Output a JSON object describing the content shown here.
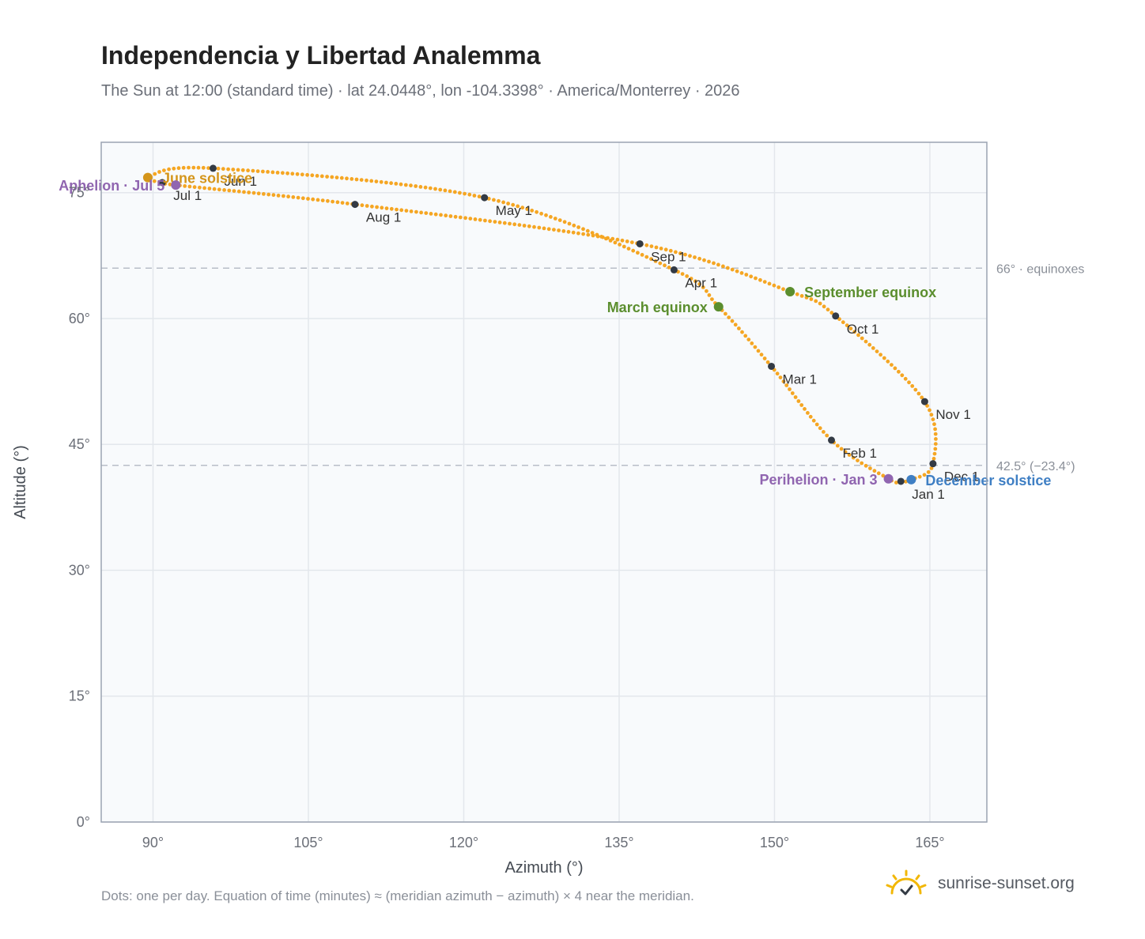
{
  "title": "Independencia y Libertad Analemma",
  "subtitle": "The Sun at 12:00 (standard time) · lat 24.0448°, lon -104.3398° · America/Monterrey · 2026",
  "footnote": "Dots: one per day. Equation of time (minutes) ≈ (meridian azimuth − azimuth) × 4 near the meridian.",
  "brand": "sunrise-sunset.org",
  "colors": {
    "curve": "#f5a623",
    "month_dot": "#333a44",
    "equinox": "#5b8e2e",
    "june_solstice": "#d4951a",
    "december_solstice": "#3f7fc4",
    "apsis": "#9065b0",
    "reference_line": "#b8bec8",
    "plot_background": "#f8fafc",
    "grid": "#e3e7ec",
    "frame": "#9aa3b2"
  },
  "chart_data": {
    "type": "scatter",
    "xlabel": "Azimuth (°)",
    "ylabel": "Altitude (°)",
    "xlim": [
      85,
      170.5
    ],
    "ylim": [
      0,
      81
    ],
    "xticks": [
      90,
      105,
      120,
      135,
      150,
      165
    ],
    "xtick_labels": [
      "90°",
      "105°",
      "120°",
      "135°",
      "150°",
      "165°"
    ],
    "yticks": [
      0,
      15,
      30,
      45,
      60,
      75
    ],
    "ytick_labels": [
      "0°",
      "15°",
      "30°",
      "45°",
      "60°",
      "75°"
    ],
    "grid": true,
    "path_anchors": [
      {
        "date": "Jan 1",
        "az": 162.2,
        "alt": 40.6
      },
      {
        "date": "Jan 3",
        "az": 161.0,
        "alt": 40.9
      },
      {
        "date": "Feb 1",
        "az": 155.5,
        "alt": 45.5
      },
      {
        "date": "Mar 1",
        "az": 149.7,
        "alt": 54.3
      },
      {
        "date": "Mar 20",
        "az": 144.6,
        "alt": 61.4
      },
      {
        "date": "Apr 1",
        "az": 140.3,
        "alt": 65.8
      },
      {
        "date": "May 1",
        "az": 122.0,
        "alt": 74.4
      },
      {
        "date": "Jun 1",
        "az": 95.8,
        "alt": 77.9
      },
      {
        "date": "Jun 21",
        "az": 89.5,
        "alt": 76.8
      },
      {
        "date": "Jul 1",
        "az": 90.9,
        "alt": 76.2
      },
      {
        "date": "Jul 5",
        "az": 92.2,
        "alt": 75.9
      },
      {
        "date": "Aug 1",
        "az": 109.5,
        "alt": 73.6
      },
      {
        "date": "Sep 1",
        "az": 137.0,
        "alt": 68.9
      },
      {
        "date": "Sep 22",
        "az": 151.5,
        "alt": 63.2
      },
      {
        "date": "Oct 1",
        "az": 155.9,
        "alt": 60.3
      },
      {
        "date": "Nov 1",
        "az": 164.5,
        "alt": 50.1
      },
      {
        "date": "Dec 1",
        "az": 165.3,
        "alt": 42.7
      },
      {
        "date": "Dec 21",
        "az": 163.2,
        "alt": 40.8
      },
      {
        "date": "Jan 1",
        "az": 162.2,
        "alt": 40.6
      }
    ],
    "month_markers": [
      {
        "label": "Jan 1",
        "az": 162.2,
        "alt": 40.6
      },
      {
        "label": "Feb 1",
        "az": 155.5,
        "alt": 45.5
      },
      {
        "label": "Mar 1",
        "az": 149.7,
        "alt": 54.3
      },
      {
        "label": "Apr 1",
        "az": 140.3,
        "alt": 65.8
      },
      {
        "label": "May 1",
        "az": 122.0,
        "alt": 74.4
      },
      {
        "label": "Jun 1",
        "az": 95.8,
        "alt": 77.9
      },
      {
        "label": "Jul 1",
        "az": 90.9,
        "alt": 76.2
      },
      {
        "label": "Aug 1",
        "az": 109.5,
        "alt": 73.6
      },
      {
        "label": "Sep 1",
        "az": 137.0,
        "alt": 68.9
      },
      {
        "label": "Oct 1",
        "az": 155.9,
        "alt": 60.3
      },
      {
        "label": "Nov 1",
        "az": 164.5,
        "alt": 50.1
      },
      {
        "label": "Dec 1",
        "az": 165.3,
        "alt": 42.7
      }
    ],
    "events": [
      {
        "label": "March equinox",
        "az": 144.6,
        "alt": 61.4,
        "color_key": "equinox"
      },
      {
        "label": "September equinox",
        "az": 151.5,
        "alt": 63.2,
        "color_key": "equinox"
      },
      {
        "label": "June solstice",
        "az": 89.5,
        "alt": 76.8,
        "color_key": "june_solstice"
      },
      {
        "label": "December solstice",
        "az": 163.2,
        "alt": 40.8,
        "color_key": "december_solstice"
      },
      {
        "label": "Aphelion · Jul 5",
        "az": 92.2,
        "alt": 75.9,
        "color_key": "apsis"
      },
      {
        "label": "Perihelion · Jan 3",
        "az": 161.0,
        "alt": 40.9,
        "color_key": "apsis"
      }
    ],
    "reference_lines": [
      {
        "alt": 66.0,
        "label": "66° · equinoxes"
      },
      {
        "alt": 42.5,
        "label": "42.5° (−23.4°)"
      }
    ]
  }
}
